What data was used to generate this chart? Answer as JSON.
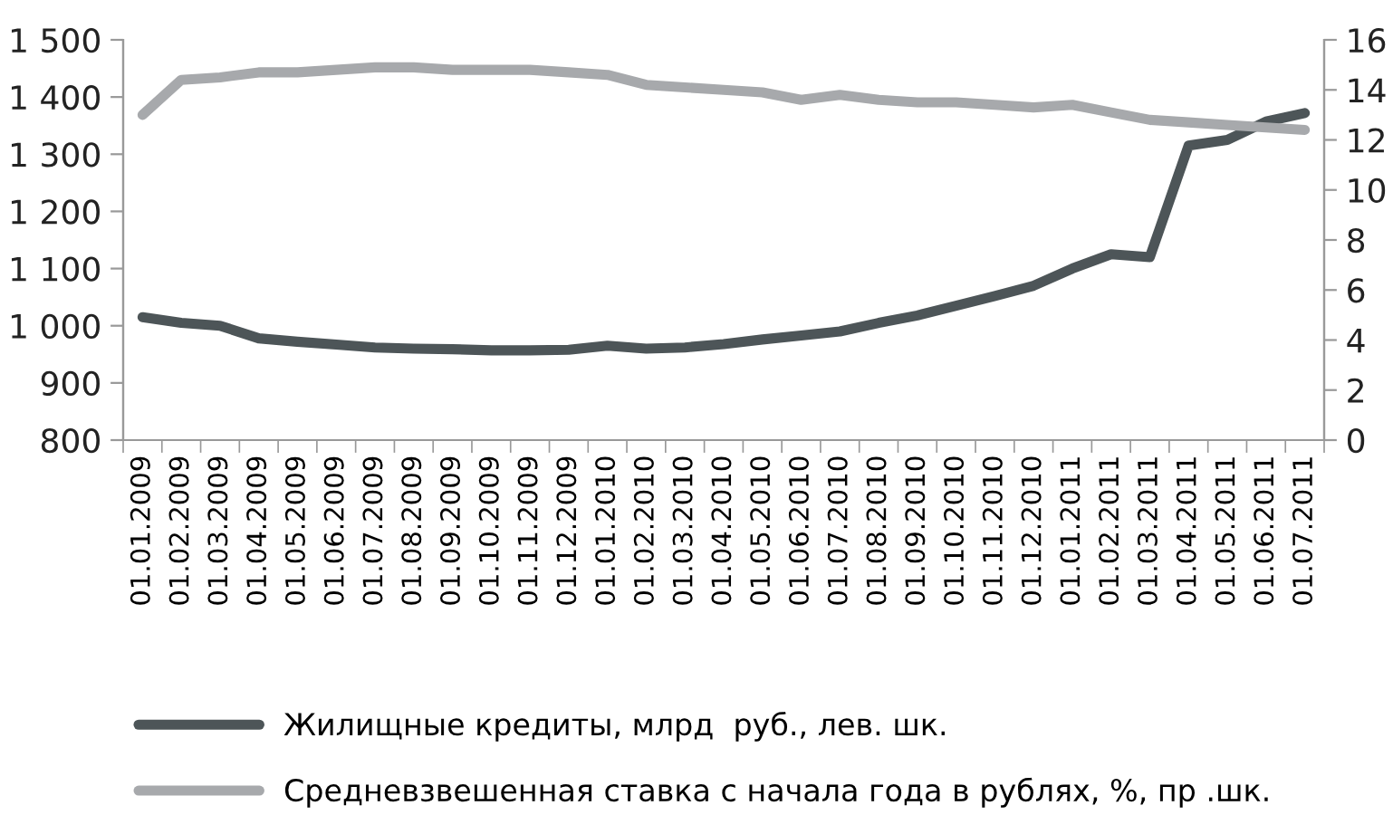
{
  "chart_data": {
    "type": "line",
    "categories": [
      "01.01.2009",
      "01.02.2009",
      "01.03.2009",
      "01.04.2009",
      "01.05.2009",
      "01.06.2009",
      "01.07.2009",
      "01.08.2009",
      "01.09.2009",
      "01.10.2009",
      "01.11.2009",
      "01.12.2009",
      "01.01.2010",
      "01.02.2010",
      "01.03.2010",
      "01.04.2010",
      "01.05.2010",
      "01.06.2010",
      "01.07.2010",
      "01.08.2010",
      "01.09.2010",
      "01.10.2010",
      "01.11.2010",
      "01.12.2010",
      "01.01.2011",
      "01.02.2011",
      "01.03.2011",
      "01.04.2011",
      "01.05.2011",
      "01.06.2011",
      "01.07.2011"
    ],
    "series": [
      {
        "name": "Жилищные кредиты, млрд  руб., лев. шк.",
        "color": "#4d5558",
        "values": [
          1015,
          1005,
          1000,
          978,
          972,
          967,
          962,
          960,
          959,
          957,
          957,
          958,
          965,
          960,
          962,
          968,
          976,
          983,
          990,
          1005,
          1018,
          1035,
          1052,
          1070,
          1100,
          1125,
          1120,
          1315,
          1325,
          1357,
          1372
        ]
      },
      {
        "name": "Средневзвешенная ставка с начала года в рублях, %, пр .шк.",
        "color": "#a7a9ac",
        "axis": "y2",
        "values": [
          13.0,
          14.4,
          14.5,
          14.7,
          14.7,
          14.8,
          14.9,
          14.9,
          14.8,
          14.8,
          14.8,
          14.7,
          14.6,
          14.2,
          14.1,
          14.0,
          13.9,
          13.6,
          13.8,
          13.6,
          13.5,
          13.5,
          13.4,
          13.3,
          13.4,
          13.1,
          12.8,
          12.7,
          12.6,
          12.5,
          12.4
        ]
      }
    ],
    "ylim": [
      800,
      1500
    ],
    "yticks": [
      {
        "value": 800,
        "label": "800"
      },
      {
        "value": 900,
        "label": "900"
      },
      {
        "value": 1000,
        "label": "1 000"
      },
      {
        "value": 1100,
        "label": "1 100"
      },
      {
        "value": 1200,
        "label": "1 200"
      },
      {
        "value": 1300,
        "label": "1 300"
      },
      {
        "value": 1400,
        "label": "1 400"
      },
      {
        "value": 1500,
        "label": "1 500"
      }
    ],
    "y2lim": [
      0,
      16
    ],
    "y2ticks": [
      0,
      2,
      4,
      6,
      8,
      10,
      12,
      14,
      16
    ],
    "legend": "bottom",
    "grid": false,
    "line_style": "solid",
    "marker": "none"
  }
}
